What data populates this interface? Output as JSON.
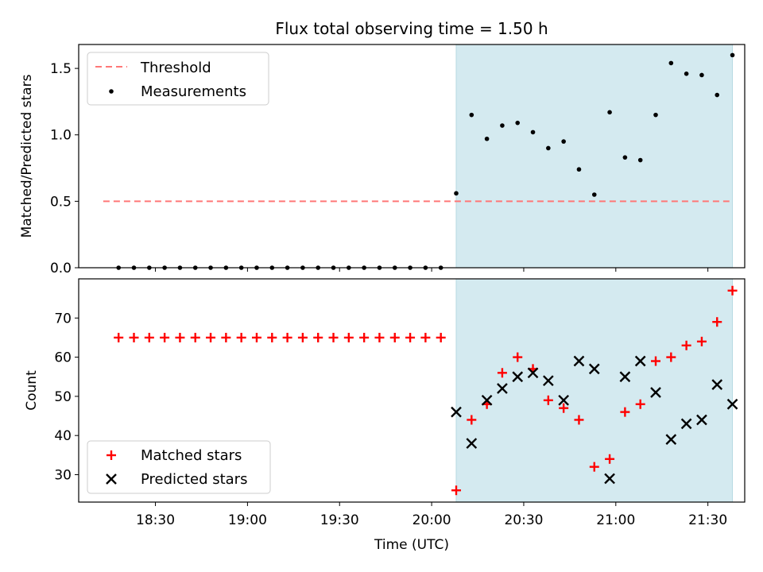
{
  "title": "Flux total observing time = 1.50 h",
  "chart_data": [
    {
      "type": "scatter",
      "title": "Flux total observing time = 1.50 h",
      "xlabel": "",
      "ylabel": "Matched/Predicted stars",
      "x_unit": "minutes since 00:00 UTC",
      "xlim": [
        1085,
        1302
      ],
      "ylim": [
        0.0,
        1.68
      ],
      "yticks": [
        0.0,
        0.5,
        1.0,
        1.5
      ],
      "ytick_labels": [
        "0.0",
        "0.5",
        "1.0",
        "1.5"
      ],
      "highlight_span": [
        1208,
        1298
      ],
      "highlight_color": "#d4eaf0",
      "legend": {
        "placement": "upper-left",
        "entries": [
          "Threshold",
          "Measurements"
        ]
      },
      "threshold": {
        "name": "Threshold",
        "x": [
          1093,
          1297
        ],
        "y": 0.5,
        "color": "#ff7777"
      },
      "series": [
        {
          "name": "Measurements",
          "color": "#000000",
          "x": [
            "18:18",
            "18:23",
            "18:28",
            "18:33",
            "18:38",
            "18:43",
            "18:48",
            "18:53",
            "18:58",
            "19:03",
            "19:08",
            "19:13",
            "19:18",
            "19:23",
            "19:28",
            "19:33",
            "19:38",
            "19:43",
            "19:48",
            "19:53",
            "19:58",
            "20:03",
            "20:08",
            "20:13",
            "20:18",
            "20:23",
            "20:28",
            "20:33",
            "20:38",
            "20:43",
            "20:48",
            "20:53",
            "20:58",
            "21:03",
            "21:08",
            "21:13",
            "21:18",
            "21:23",
            "21:28",
            "21:33",
            "21:38"
          ],
          "y": [
            0,
            0,
            0,
            0,
            0,
            0,
            0,
            0,
            0,
            0,
            0,
            0,
            0,
            0,
            0,
            0,
            0,
            0,
            0,
            0,
            0,
            0,
            0.56,
            1.15,
            0.97,
            1.07,
            1.09,
            1.02,
            0.9,
            0.95,
            0.74,
            0.55,
            1.17,
            0.83,
            0.81,
            1.15,
            1.54,
            1.46,
            1.45,
            1.3,
            1.6
          ]
        }
      ]
    },
    {
      "type": "scatter",
      "xlabel": "Time (UTC)",
      "ylabel": "Count",
      "x_unit": "minutes since 00:00 UTC",
      "xlim": [
        1085,
        1302
      ],
      "ylim": [
        23,
        80
      ],
      "yticks": [
        30,
        40,
        50,
        60,
        70
      ],
      "ytick_labels": [
        "30",
        "40",
        "50",
        "60",
        "70"
      ],
      "xticks": [
        "18:30",
        "19:00",
        "19:30",
        "20:00",
        "20:30",
        "21:00",
        "21:30"
      ],
      "highlight_span": [
        1208,
        1298
      ],
      "highlight_color": "#d4eaf0",
      "legend": {
        "placement": "lower-left",
        "entries": [
          "Matched stars",
          "Predicted stars"
        ]
      },
      "series": [
        {
          "name": "Matched stars",
          "marker": "+",
          "color": "#ff0000",
          "x": [
            "18:18",
            "18:23",
            "18:28",
            "18:33",
            "18:38",
            "18:43",
            "18:48",
            "18:53",
            "18:58",
            "19:03",
            "19:08",
            "19:13",
            "19:18",
            "19:23",
            "19:28",
            "19:33",
            "19:38",
            "19:43",
            "19:48",
            "19:53",
            "19:58",
            "20:03",
            "20:08",
            "20:13",
            "20:18",
            "20:23",
            "20:28",
            "20:33",
            "20:38",
            "20:43",
            "20:48",
            "20:53",
            "20:58",
            "21:03",
            "21:08",
            "21:13",
            "21:18",
            "21:23",
            "21:28",
            "21:33",
            "21:38"
          ],
          "y": [
            65,
            65,
            65,
            65,
            65,
            65,
            65,
            65,
            65,
            65,
            65,
            65,
            65,
            65,
            65,
            65,
            65,
            65,
            65,
            65,
            65,
            65,
            26,
            44,
            48,
            56,
            60,
            57,
            49,
            47,
            44,
            32,
            34,
            46,
            48,
            59,
            60,
            63,
            64,
            69,
            77
          ]
        },
        {
          "name": "Predicted stars",
          "marker": "x",
          "color": "#000000",
          "x": [
            "20:08",
            "20:13",
            "20:18",
            "20:23",
            "20:28",
            "20:33",
            "20:38",
            "20:43",
            "20:48",
            "20:53",
            "20:58",
            "21:03",
            "21:08",
            "21:13",
            "21:18",
            "21:23",
            "21:28",
            "21:33",
            "21:38"
          ],
          "y": [
            46,
            38,
            49,
            52,
            55,
            56,
            54,
            49,
            59,
            57,
            29,
            55,
            59,
            51,
            39,
            43,
            44,
            53,
            48
          ]
        }
      ]
    }
  ]
}
